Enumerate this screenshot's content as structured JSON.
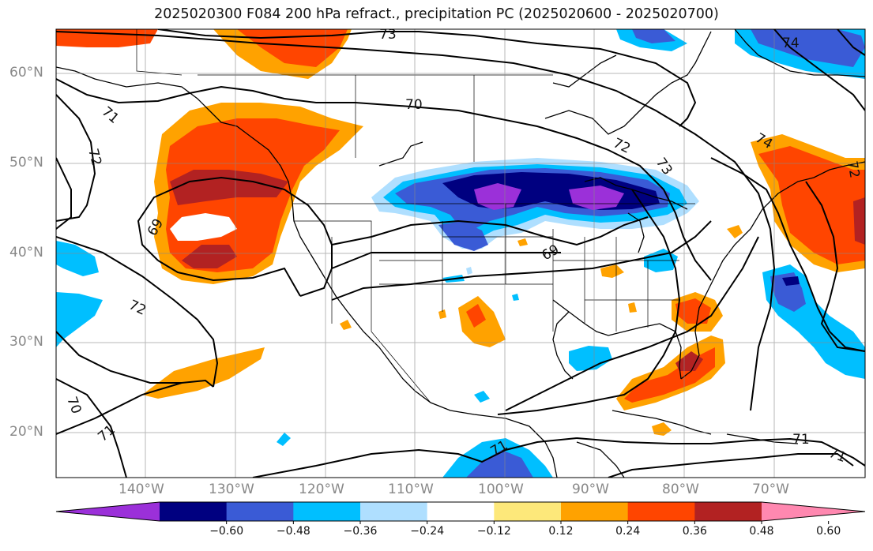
{
  "title": "2025020300 F084 200 hPa refract., precipitation PC (2025020600 - 2025020700)",
  "map": {
    "lat_ticks": [
      "60°N",
      "50°N",
      "40°N",
      "30°N",
      "20°N"
    ],
    "lon_ticks": [
      "140°W",
      "130°W",
      "120°W",
      "110°W",
      "100°W",
      "90°W",
      "80°W",
      "70°W"
    ],
    "contour_labels": [
      "73",
      "74",
      "71",
      "72",
      "70",
      "69",
      "72",
      "73",
      "74",
      "72",
      "69",
      "72",
      "70",
      "71",
      "71",
      "71",
      "71"
    ]
  },
  "colorbar": {
    "ticks": [
      "−0.60",
      "−0.48",
      "−0.36",
      "−0.24",
      "−0.12",
      "0.12",
      "0.24",
      "0.36",
      "0.48",
      "0.60"
    ],
    "colors": [
      "#9b30d9",
      "#000080",
      "#3a5bd6",
      "#00bfff",
      "#afdfff",
      "#ffffff",
      "#fde87a",
      "#ffa200",
      "#ff4500",
      "#b22222",
      "#ff88b0"
    ]
  }
}
